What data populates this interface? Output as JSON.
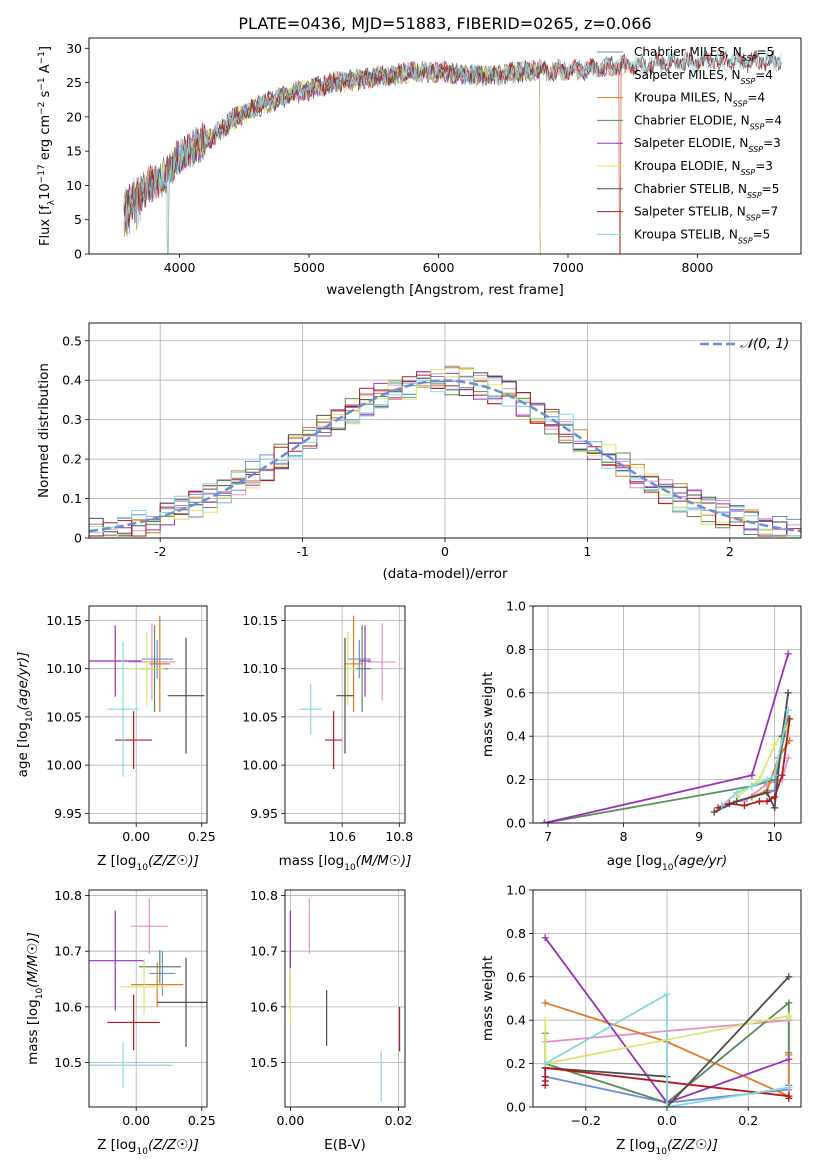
{
  "figure_title": "PLATE=0436, MJD=51883, FIBERID=0265, z=0.066",
  "colors": [
    "#6a8fd6",
    "#e48fc6",
    "#de7a28",
    "#5b8c5b",
    "#9b30b8",
    "#d8e86a",
    "#4d4d4d",
    "#b31b1b",
    "#86d8e0"
  ],
  "chart_data": [
    {
      "id": "spectrum",
      "type": "line",
      "title": "PLATE=0436, MJD=51883, FIBERID=0265, z=0.066",
      "xlabel": "wavelength [Angstrom, rest frame]",
      "ylabel": "Flux [f",
      "ylabel_parts": [
        "Flux [f",
        "λ",
        "10",
        "−17",
        " erg cm",
        "−2",
        " s",
        "−1",
        " A",
        "−1",
        "]"
      ],
      "xlim": [
        3300,
        8800
      ],
      "ylim": [
        0,
        31.5
      ],
      "xticks": [
        4000,
        5000,
        6000,
        7000,
        8000
      ],
      "yticks": [
        0,
        5,
        10,
        15,
        20,
        25,
        30
      ],
      "grid": false,
      "legend_position": "upper-right",
      "continuum": [
        [
          3570,
          7.5
        ],
        [
          3700,
          9.0
        ],
        [
          3800,
          10.5
        ],
        [
          3900,
          11.5
        ],
        [
          3980,
          13.8
        ],
        [
          4100,
          15.5
        ],
        [
          4250,
          17.0
        ],
        [
          4400,
          19.5
        ],
        [
          4600,
          21.5
        ],
        [
          4800,
          23.0
        ],
        [
          5000,
          24.0
        ],
        [
          5200,
          25.0
        ],
        [
          5400,
          25.5
        ],
        [
          5600,
          26.0
        ],
        [
          5800,
          26.5
        ],
        [
          6000,
          26.5
        ],
        [
          6200,
          26.2
        ],
        [
          6400,
          26.0
        ],
        [
          6600,
          26.5
        ],
        [
          6800,
          26.8
        ],
        [
          7000,
          26.8
        ],
        [
          7200,
          27.0
        ],
        [
          7400,
          27.5
        ],
        [
          7600,
          27.5
        ],
        [
          7800,
          28.0
        ],
        [
          8000,
          28.0
        ],
        [
          8200,
          28.2
        ],
        [
          8400,
          28.0
        ],
        [
          8600,
          28.2
        ]
      ],
      "dips": [
        {
          "x": 3910,
          "y": 0
        },
        {
          "x": 6790,
          "y": 0
        },
        {
          "x": 7400,
          "y": 0
        }
      ],
      "series": [
        {
          "name": "Chabrier MILES",
          "nssp": "5",
          "x_range": [
            3570,
            7460
          ]
        },
        {
          "name": "Salpeter MILES",
          "nssp": "4",
          "x_range": [
            3570,
            7460
          ]
        },
        {
          "name": "Kroupa MILES",
          "nssp": "4",
          "x_range": [
            3570,
            7460
          ]
        },
        {
          "name": "Chabrier ELODIE",
          "nssp": "4",
          "x_range": [
            3570,
            6790
          ]
        },
        {
          "name": "Salpeter ELODIE",
          "nssp": "3",
          "x_range": [
            3570,
            6790
          ]
        },
        {
          "name": "Kroupa ELODIE",
          "nssp": "3",
          "x_range": [
            3570,
            6790
          ]
        },
        {
          "name": "Chabrier STELIB",
          "nssp": "5",
          "x_range": [
            3570,
            8650
          ]
        },
        {
          "name": "Salpeter STELIB",
          "nssp": "7",
          "x_range": [
            3570,
            8650
          ]
        },
        {
          "name": "Kroupa STELIB",
          "nssp": "5",
          "x_range": [
            3570,
            8650
          ]
        }
      ]
    },
    {
      "id": "residuals",
      "type": "line",
      "xlabel": "(data-model)/error",
      "ylabel": "Normed distribution",
      "xlim": [
        -2.5,
        2.5
      ],
      "ylim": [
        0,
        0.545
      ],
      "xticks": [
        -2,
        -1,
        0,
        1,
        2
      ],
      "yticks": [
        0.0,
        0.1,
        0.2,
        0.3,
        0.4,
        0.5
      ],
      "grid": true,
      "legend_position": "upper-right",
      "legend": "𝒩(0, 1)",
      "gaussian_curve": {
        "mean": 0,
        "sigma": 1,
        "color": "#6a8fd6"
      },
      "histogram_bin_width": 0.1
    },
    {
      "id": "age-vs-Z",
      "type": "scatter",
      "xlabel": "Z [log",
      "ylabel": "age  [log",
      "xlim": [
        -0.18,
        0.27
      ],
      "ylim": [
        9.94,
        10.165
      ],
      "xticks": [
        0.0,
        0.25
      ],
      "xtick_labels": [
        "0.00",
        "0.25"
      ],
      "yticks": [
        9.95,
        10.0,
        10.05,
        10.1,
        10.15
      ],
      "ytick_labels": [
        "9.95",
        "10.00",
        "10.05",
        "10.10",
        "10.15"
      ],
      "grid": true,
      "points": [
        {
          "x": 0.08,
          "xerr": 0.06,
          "y": 10.11,
          "yerr": 0.02
        },
        {
          "x": 0.06,
          "xerr": 0.09,
          "y": 10.107,
          "yerr": 0.04
        },
        {
          "x": 0.09,
          "xerr": 0.04,
          "y": 10.105,
          "yerr": 0.05
        },
        {
          "x": 0.07,
          "xerr": 0.05,
          "y": 10.1,
          "yerr": 0.045
        },
        {
          "x": -0.08,
          "xerr": 0.1,
          "y": 10.108,
          "yerr": 0.037
        },
        {
          "x": 0.04,
          "xerr": 0.07,
          "y": 10.1,
          "yerr": 0.038
        },
        {
          "x": 0.19,
          "xerr": 0.07,
          "y": 10.072,
          "yerr": 0.06
        },
        {
          "x": -0.01,
          "xerr": 0.07,
          "y": 10.026,
          "yerr": 0.03
        },
        {
          "x": -0.05,
          "xerr": 0.06,
          "y": 10.058,
          "yerr": 0.07
        }
      ]
    },
    {
      "id": "age-vs-mass",
      "type": "scatter",
      "xlabel": "mass [log",
      "xlim": [
        10.4,
        10.82
      ],
      "ylim": [
        9.94,
        10.165
      ],
      "xticks": [
        10.6,
        10.8
      ],
      "xtick_labels": [
        "10.6",
        "10.8"
      ],
      "yticks": [
        9.95,
        10.0,
        10.05,
        10.1,
        10.15
      ],
      "ytick_labels": [
        "9.95",
        "10.00",
        "10.05",
        "10.10",
        "10.15"
      ],
      "grid": true,
      "points": [
        {
          "x": 10.66,
          "xerr": 0.04,
          "y": 10.11,
          "yerr": 0.02
        },
        {
          "x": 10.74,
          "xerr": 0.05,
          "y": 10.107,
          "yerr": 0.04
        },
        {
          "x": 10.64,
          "xerr": 0.03,
          "y": 10.105,
          "yerr": 0.05
        },
        {
          "x": 10.67,
          "xerr": 0.03,
          "y": 10.1,
          "yerr": 0.045
        },
        {
          "x": 10.68,
          "xerr": 0.02,
          "y": 10.108,
          "yerr": 0.037
        },
        {
          "x": 10.62,
          "xerr": 0.03,
          "y": 10.1,
          "yerr": 0.038
        },
        {
          "x": 10.61,
          "xerr": 0.03,
          "y": 10.072,
          "yerr": 0.06
        },
        {
          "x": 10.57,
          "xerr": 0.03,
          "y": 10.026,
          "yerr": 0.03
        },
        {
          "x": 10.49,
          "xerr": 0.04,
          "y": 10.058,
          "yerr": 0.026
        }
      ]
    },
    {
      "id": "weight-vs-age",
      "type": "line",
      "xlabel": "age  [log",
      "ylabel": "mass weight",
      "xlim": [
        6.8,
        10.35
      ],
      "ylim": [
        0.0,
        1.0
      ],
      "xticks": [
        7,
        8,
        9,
        10
      ],
      "yticks": [
        0.0,
        0.2,
        0.4,
        0.6,
        0.8,
        1.0
      ],
      "ytick_labels": [
        "0.0",
        "0.2",
        "0.4",
        "0.6",
        "0.8",
        "1.0"
      ],
      "grid": true,
      "series": [
        {
          "x": [
            9.3,
            9.7,
            10.0,
            10.18
          ],
          "y": [
            0.08,
            0.12,
            0.15,
            0.52
          ]
        },
        {
          "x": [
            9.6,
            9.9,
            10.1,
            10.18
          ],
          "y": [
            0.1,
            0.18,
            0.2,
            0.3
          ]
        },
        {
          "x": [
            9.7,
            9.9,
            10.05,
            10.2
          ],
          "y": [
            0.12,
            0.15,
            0.3,
            0.38
          ]
        },
        {
          "x": [
            6.95,
            9.7,
            10.0,
            10.18
          ],
          "y": [
            0.0,
            0.17,
            0.2,
            0.48
          ]
        },
        {
          "x": [
            6.95,
            9.7,
            10.18
          ],
          "y": [
            0.0,
            0.22,
            0.78
          ]
        },
        {
          "x": [
            9.5,
            9.8,
            10.0,
            10.18
          ],
          "y": [
            0.12,
            0.2,
            0.36,
            0.45
          ]
        },
        {
          "x": [
            9.2,
            9.5,
            9.9,
            10.0,
            10.1,
            10.18
          ],
          "y": [
            0.05,
            0.1,
            0.14,
            0.07,
            0.4,
            0.6
          ]
        },
        {
          "x": [
            9.25,
            9.4,
            9.6,
            9.8,
            9.9,
            10.0,
            10.1,
            10.2
          ],
          "y": [
            0.07,
            0.09,
            0.08,
            0.1,
            0.1,
            0.12,
            0.22,
            0.48
          ]
        },
        {
          "x": [
            9.3,
            9.5,
            9.7,
            9.9,
            10.0,
            10.18
          ],
          "y": [
            0.08,
            0.14,
            0.17,
            0.2,
            0.22,
            0.52
          ]
        }
      ]
    },
    {
      "id": "mass-vs-Z",
      "type": "scatter",
      "xlabel": "Z [log",
      "ylabel": "mass [log",
      "xlim": [
        -0.18,
        0.27
      ],
      "ylim": [
        10.42,
        10.81
      ],
      "xticks": [
        0.0,
        0.25
      ],
      "xtick_labels": [
        "0.00",
        "0.25"
      ],
      "yticks": [
        10.5,
        10.6,
        10.7,
        10.8
      ],
      "ytick_labels": [
        "10.5",
        "10.6",
        "10.7",
        "10.8"
      ],
      "grid": true,
      "points": [
        {
          "x": 0.1,
          "xerr": 0.05,
          "y": 10.66,
          "yerr": 0.04
        },
        {
          "x": 0.05,
          "xerr": 0.07,
          "y": 10.745,
          "yerr": 0.05
        },
        {
          "x": 0.08,
          "xerr": 0.1,
          "y": 10.64,
          "yerr": 0.04
        },
        {
          "x": 0.09,
          "xerr": 0.08,
          "y": 10.672,
          "yerr": 0.03
        },
        {
          "x": -0.08,
          "xerr": 0.11,
          "y": 10.683,
          "yerr": 0.09
        },
        {
          "x": 0.03,
          "xerr": 0.09,
          "y": 10.636,
          "yerr": 0.05
        },
        {
          "x": 0.19,
          "xerr": 0.11,
          "y": 10.608,
          "yerr": 0.08
        },
        {
          "x": -0.01,
          "xerr": 0.1,
          "y": 10.572,
          "yerr": 0.05
        },
        {
          "x": -0.05,
          "xerr": 0.19,
          "y": 10.495,
          "yerr": 0.04
        }
      ]
    },
    {
      "id": "mass-vs-ebv",
      "type": "scatter",
      "xlabel": "E(B-V)",
      "xlim": [
        -0.001,
        0.0212
      ],
      "ylim": [
        10.42,
        10.81
      ],
      "xticks": [
        0.0,
        0.02
      ],
      "xtick_labels": [
        "0.00",
        "0.02"
      ],
      "yticks": [
        10.5,
        10.6,
        10.7,
        10.8
      ],
      "ytick_labels": [
        "10.5",
        "10.6",
        "10.7",
        "10.8"
      ],
      "grid": true,
      "points": [
        {
          "x": 0.0,
          "y": 10.72,
          "yerr": 0.05
        },
        {
          "x": 0.0035,
          "y": 10.745,
          "yerr": 0.05
        },
        {
          "x": 0.0,
          "y": 10.64,
          "yerr": 0.03
        },
        {
          "x": 0.0,
          "y": 10.672,
          "yerr": 0.03
        },
        {
          "x": 0.0,
          "y": 10.683,
          "yerr": 0.09
        },
        {
          "x": 0.0,
          "y": 10.62,
          "yerr": 0.05
        },
        {
          "x": 0.0067,
          "y": 10.58,
          "yerr": 0.05
        },
        {
          "x": 0.0202,
          "y": 10.56,
          "yerr": 0.04
        },
        {
          "x": 0.0168,
          "y": 10.475,
          "yerr": 0.045
        }
      ]
    },
    {
      "id": "weight-vs-Z",
      "type": "line",
      "xlabel": "Z [log",
      "ylabel": "mass weight",
      "xlim": [
        -0.33,
        0.33
      ],
      "ylim": [
        0.0,
        1.0
      ],
      "xticks": [
        -0.2,
        0.0,
        0.2
      ],
      "xtick_labels": [
        "−0.2",
        "0.0",
        "0.2"
      ],
      "yticks": [
        0.0,
        0.2,
        0.4,
        0.6,
        0.8,
        1.0
      ],
      "ytick_labels": [
        "0.0",
        "0.2",
        "0.4",
        "0.6",
        "0.8",
        "1.0"
      ],
      "grid": true,
      "series": [
        {
          "x": [
            -0.3,
            0.0,
            0.3,
            0.3
          ],
          "y": [
            0.14,
            0.02,
            0.08,
            0.1
          ]
        },
        {
          "x": [
            -0.3,
            0.3,
            0.3
          ],
          "y": [
            0.3,
            0.4,
            0.05
          ]
        },
        {
          "x": [
            -0.3,
            0.0,
            0.3,
            0.3
          ],
          "y": [
            0.48,
            0.3,
            0.05,
            0.24
          ]
        },
        {
          "x": [
            -0.3,
            -0.3,
            0.0,
            0.3,
            0.3
          ],
          "y": [
            0.34,
            0.2,
            0.02,
            0.48,
            0.25
          ]
        },
        {
          "x": [
            -0.3,
            0.0,
            0.3
          ],
          "y": [
            0.78,
            0.02,
            0.22
          ]
        },
        {
          "x": [
            -0.3,
            -0.3,
            0.3,
            0.3
          ],
          "y": [
            0.4,
            0.2,
            0.42,
            0.41
          ]
        },
        {
          "x": [
            -0.3,
            0.0,
            0.0,
            0.3
          ],
          "y": [
            0.18,
            0.14,
            0.0,
            0.6
          ]
        },
        {
          "x": [
            -0.3,
            -0.3,
            -0.3,
            -0.3,
            0.3,
            0.3
          ],
          "y": [
            0.1,
            0.12,
            0.14,
            0.18,
            0.05,
            0.04
          ]
        },
        {
          "x": [
            -0.3,
            0.0,
            0.0,
            0.3
          ],
          "y": [
            0.2,
            0.52,
            0.0,
            0.09
          ]
        }
      ]
    }
  ]
}
